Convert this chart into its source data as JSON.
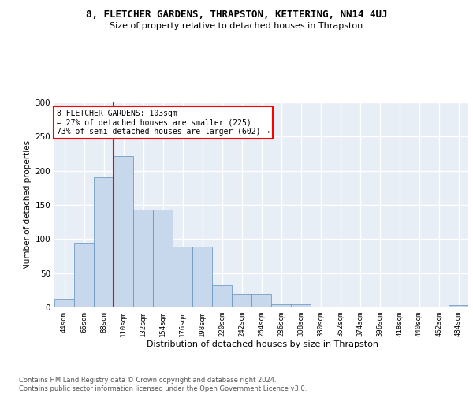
{
  "title": "8, FLETCHER GARDENS, THRAPSTON, KETTERING, NN14 4UJ",
  "subtitle": "Size of property relative to detached houses in Thrapston",
  "xlabel": "Distribution of detached houses by size in Thrapston",
  "ylabel": "Number of detached properties",
  "bar_color": "#c8d8ec",
  "bar_edge_color": "#6090b8",
  "bg_color": "#e8eef6",
  "grid_color": "white",
  "bins": [
    "44sqm",
    "66sqm",
    "88sqm",
    "110sqm",
    "132sqm",
    "154sqm",
    "176sqm",
    "198sqm",
    "220sqm",
    "242sqm",
    "264sqm",
    "286sqm",
    "308sqm",
    "330sqm",
    "352sqm",
    "374sqm",
    "396sqm",
    "418sqm",
    "440sqm",
    "462sqm",
    "484sqm"
  ],
  "values": [
    12,
    93,
    190,
    222,
    143,
    143,
    89,
    89,
    32,
    20,
    20,
    5,
    5,
    0,
    0,
    0,
    0,
    0,
    0,
    0,
    4
  ],
  "red_line_x": 2.5,
  "annotation_text": "8 FLETCHER GARDENS: 103sqm\n← 27% of detached houses are smaller (225)\n73% of semi-detached houses are larger (602) →",
  "annotation_box_facecolor": "white",
  "annotation_box_edgecolor": "red",
  "ylim": [
    0,
    300
  ],
  "yticks": [
    0,
    50,
    100,
    150,
    200,
    250,
    300
  ],
  "footer_line1": "Contains HM Land Registry data © Crown copyright and database right 2024.",
  "footer_line2": "Contains public sector information licensed under the Open Government Licence v3.0."
}
